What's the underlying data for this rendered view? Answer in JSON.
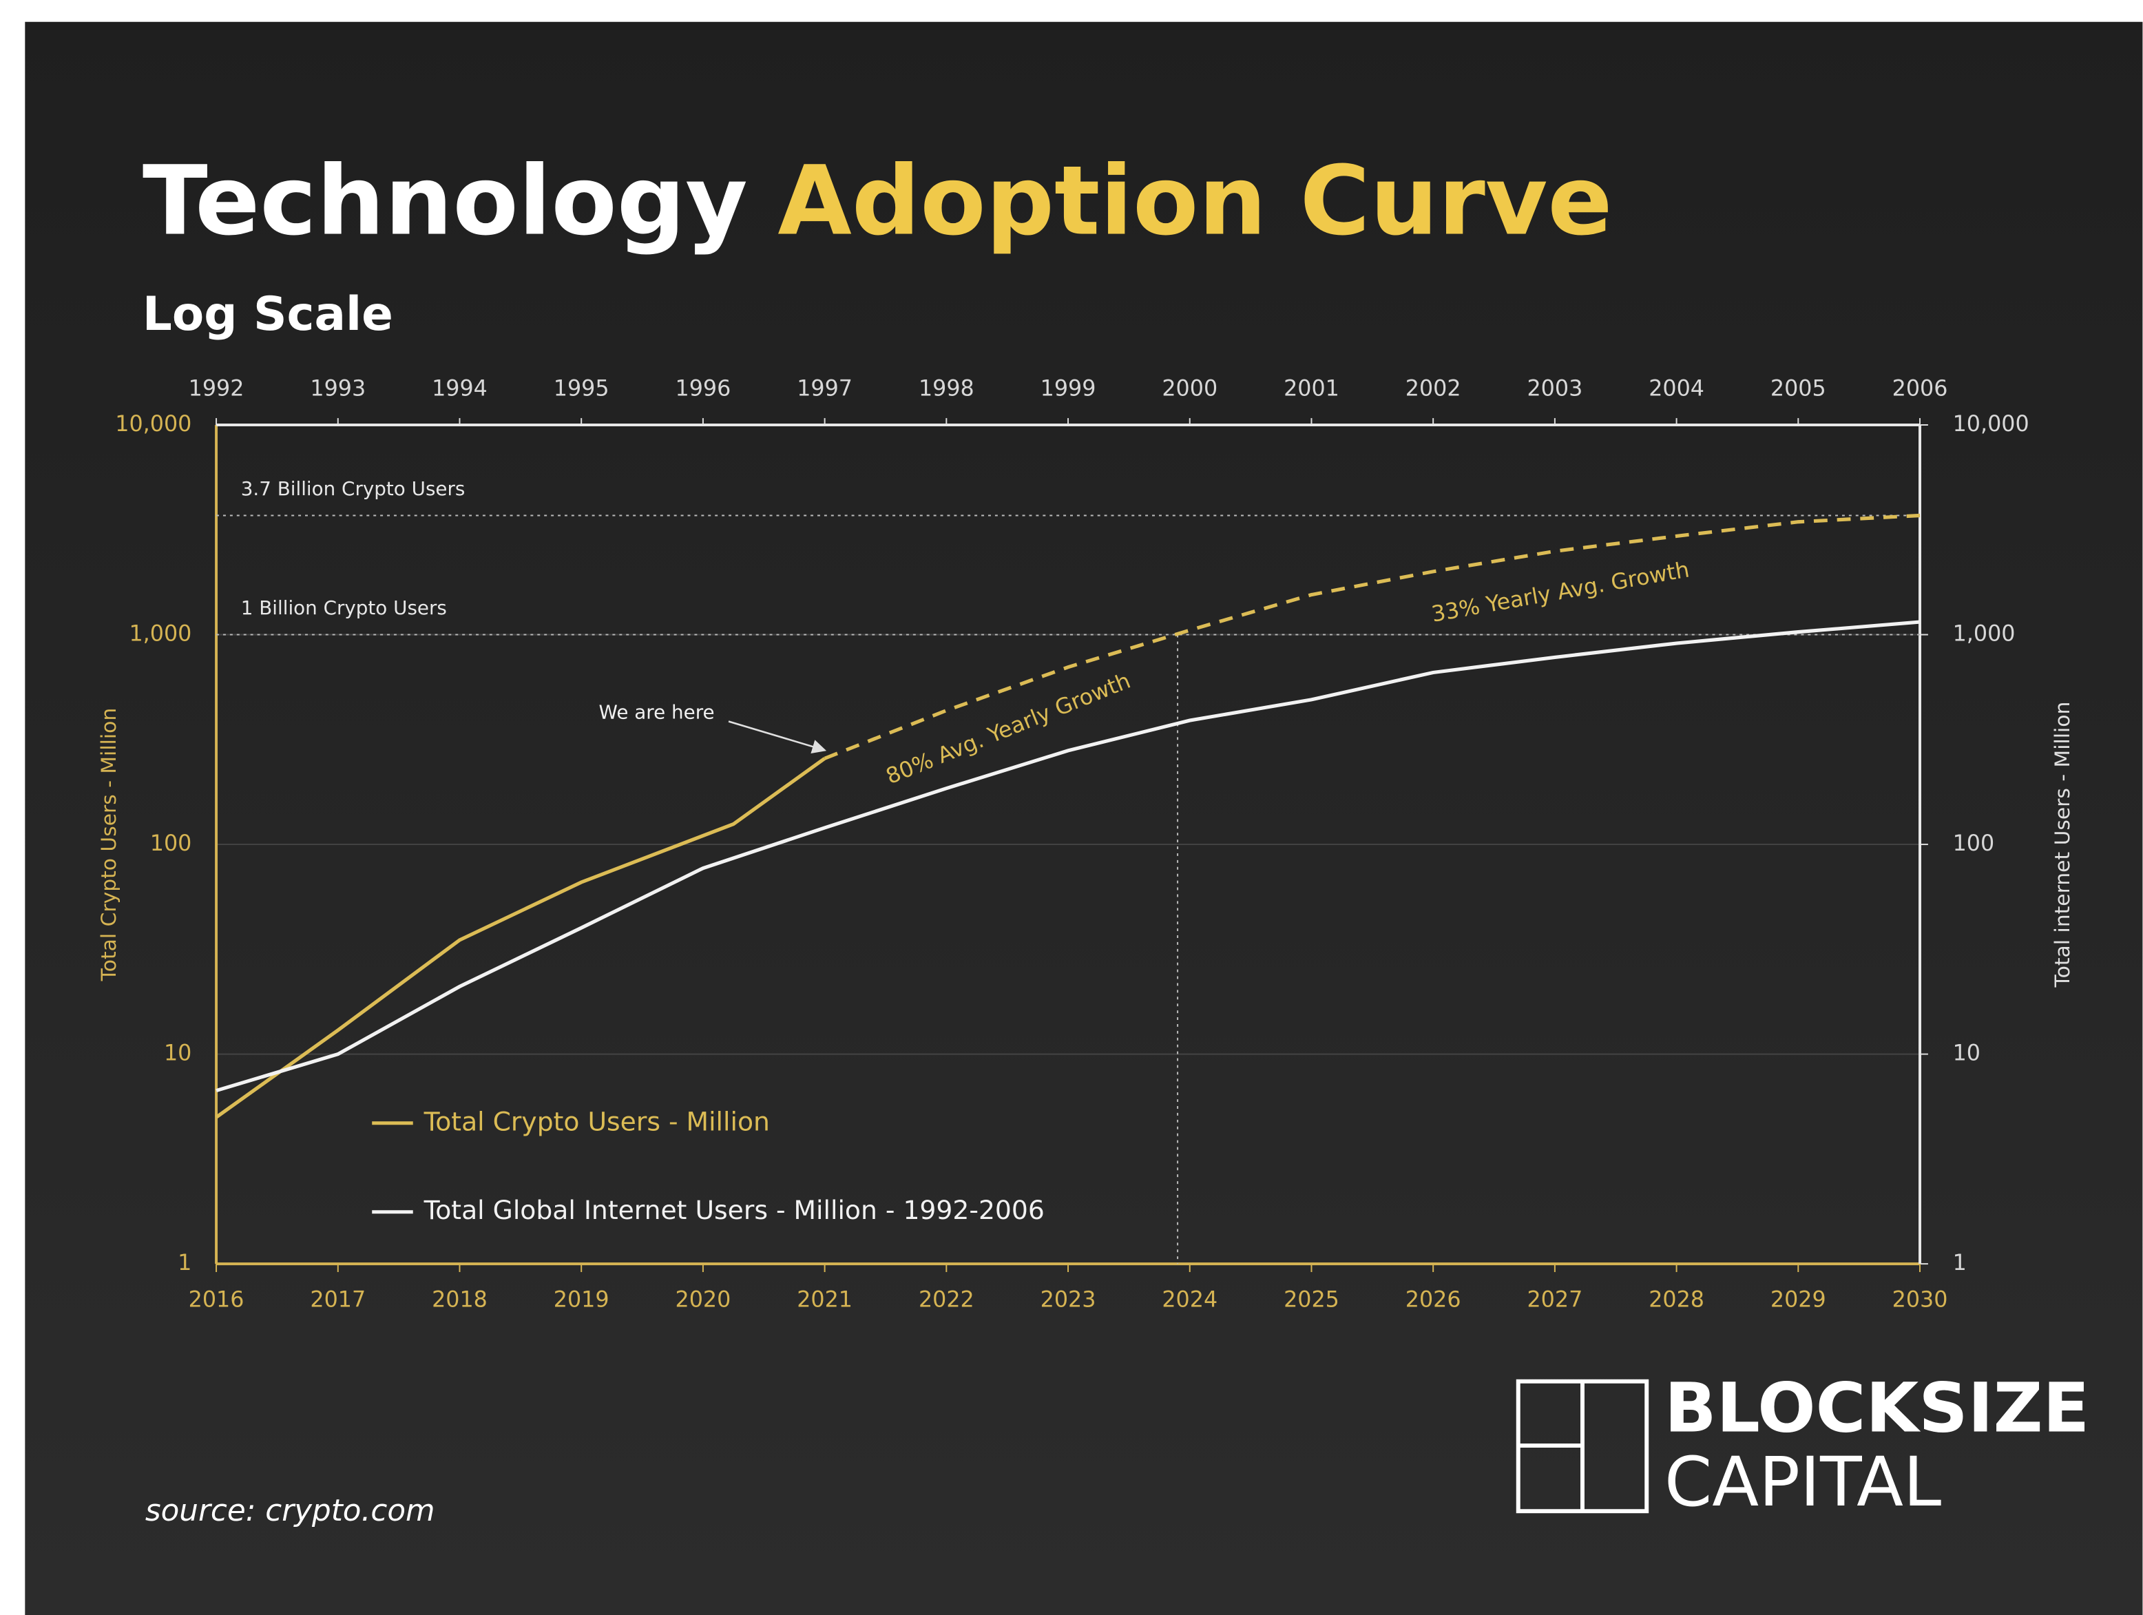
{
  "chart_data": {
    "type": "line",
    "title": "Technology",
    "title_highlight": "Adoption Curve",
    "subtitle": "Log Scale",
    "ylabel": "Total Crypto Users - Million",
    "y2label": "Total internet Users - Million",
    "ylog": true,
    "xlim": [
      2016,
      2030
    ],
    "xticks": [
      2016,
      2017,
      2018,
      2019,
      2020,
      2021,
      2022,
      2023,
      2024,
      2025,
      2026,
      2027,
      2028,
      2029,
      2030
    ],
    "x2lim": [
      1992,
      2006
    ],
    "x2ticks": [
      1992,
      1993,
      1994,
      1995,
      1996,
      1997,
      1998,
      1999,
      2000,
      2001,
      2002,
      2003,
      2004,
      2005,
      2006
    ],
    "ylim": [
      1,
      10000
    ],
    "yticks": [
      1,
      10,
      100,
      {
        "value": 1000,
        "label": "1,000"
      },
      {
        "value": 10000,
        "label": "10,000"
      }
    ],
    "y2lim": [
      1,
      10000
    ],
    "y2ticks": [
      1,
      10,
      100,
      {
        "value": 1000,
        "label": "1,000"
      },
      {
        "value": 10000,
        "label": "10,000"
      }
    ],
    "series": [
      {
        "name": "Total Crypto Users - Million",
        "color": "#dcbc55",
        "x": [
          2016,
          2017,
          2018,
          2019,
          2020.25,
          2021,
          2022,
          2023,
          2024,
          2025,
          2026,
          2027,
          2028,
          2029,
          2030
        ],
        "values": [
          5,
          13,
          35,
          66,
          125,
          257,
          435,
          700,
          1050,
          1550,
          2000,
          2500,
          2950,
          3450,
          3700
        ],
        "projection_from": 2021
      },
      {
        "name": "Total Global Internet Users - Million - 1992-2006",
        "color": "#f2f2f2",
        "axis": "y2",
        "x_axis": "x2",
        "x": [
          1992,
          1993,
          1994,
          1995,
          1996,
          1997,
          1998,
          1999,
          2000,
          2001,
          2002,
          2003,
          2004,
          2005,
          2006
        ],
        "values": [
          6.7,
          10,
          21,
          40,
          77,
          120,
          185,
          280,
          390,
          490,
          660,
          780,
          910,
          1030,
          1150
        ]
      }
    ],
    "reference_lines": [
      {
        "label": "3.7 Billion Crypto Users",
        "value": 3700
      },
      {
        "label": "1 Billion Crypto Users",
        "value": 1000
      }
    ],
    "vline_x": 2023.9,
    "annotations": {
      "we_are_here": "We are here",
      "growth_1": "80% Avg. Yearly Growth",
      "growth_2": "33% Yearly Avg. Growth"
    },
    "legend": "lower left"
  },
  "source": "source: crypto.com",
  "logo": [
    "BLOCKSIZE",
    "CAPITAL"
  ]
}
